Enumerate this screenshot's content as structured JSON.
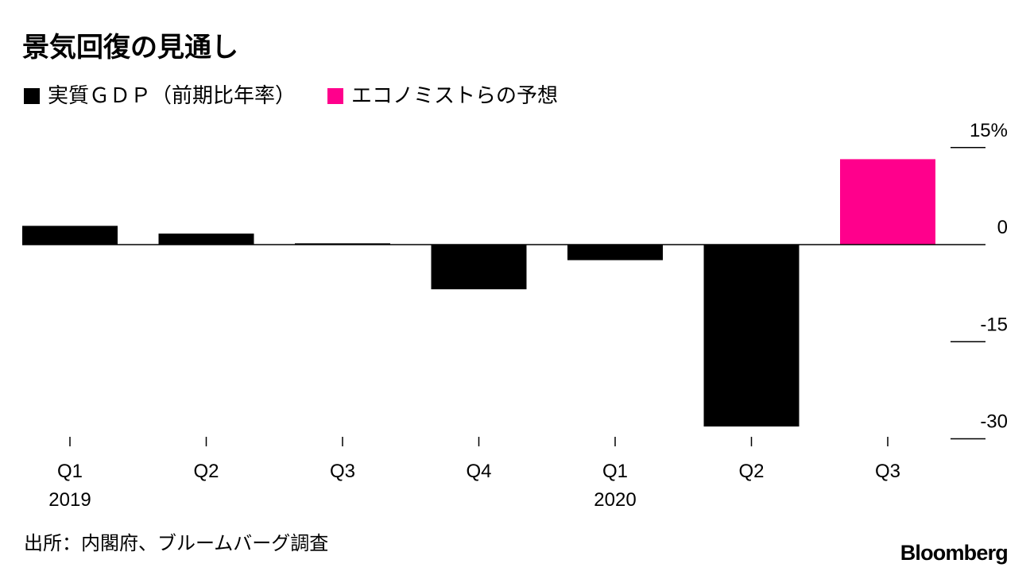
{
  "chart_data": {
    "type": "bar",
    "title": "景気回復の見通し",
    "categories": [
      "Q1",
      "Q2",
      "Q3",
      "Q4",
      "Q1",
      "Q2",
      "Q3"
    ],
    "year_labels": [
      "2019",
      "",
      "",
      "",
      "2020",
      "",
      ""
    ],
    "series": [
      {
        "name": "実質ＧＤＰ（前期比年率）",
        "color": "#000000",
        "values": [
          2.9,
          1.7,
          0.2,
          null,
          -2.4,
          -28.1,
          null
        ]
      },
      {
        "name": "エコノミストらの予想",
        "color": "#ff008c",
        "values": [
          null,
          null,
          null,
          null,
          null,
          null,
          13.2
        ]
      }
    ],
    "extra_values": {
      "Q4": -6.9
    },
    "y_ticks": [
      {
        "value": 15,
        "label": "15%"
      },
      {
        "value": 0,
        "label": "0"
      },
      {
        "value": -15,
        "label": "-15"
      },
      {
        "value": -30,
        "label": "-30"
      }
    ],
    "ylim": [
      -30,
      15
    ],
    "legend_position": "top-left",
    "axis_side": "right",
    "grid": false,
    "source": "出所：内閣府、ブルームバーグ調査",
    "brand": "Bloomberg"
  }
}
